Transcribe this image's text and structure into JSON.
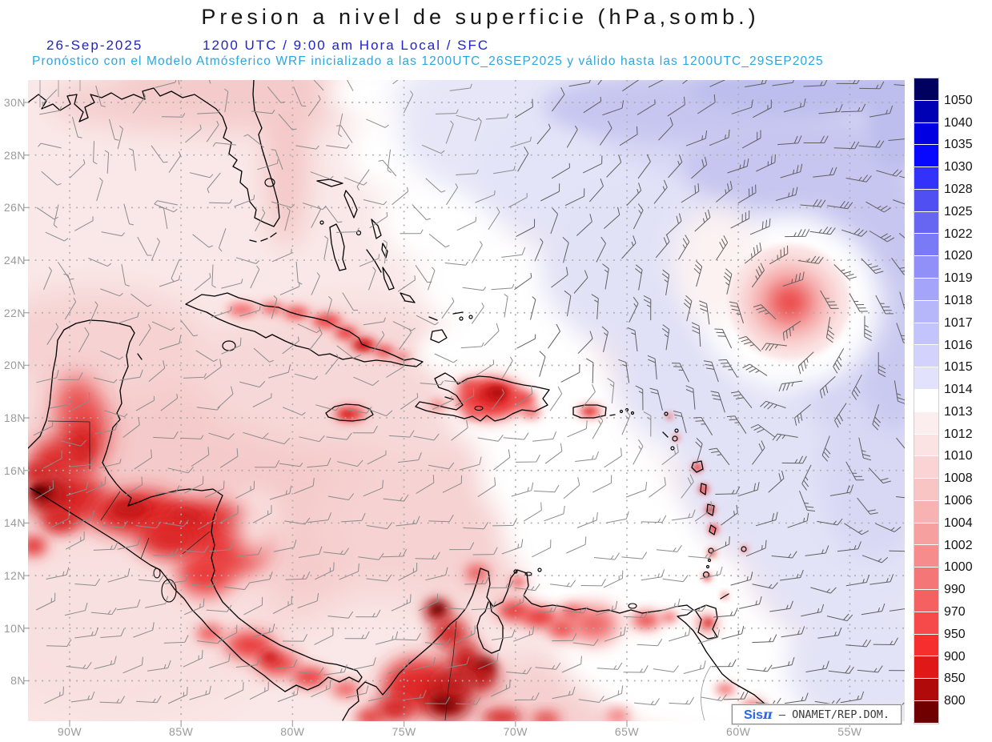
{
  "header": {
    "title": "Presion a nivel de superficie (hPa,somb.)",
    "date": "26-Sep-2025",
    "time_line": "1200 UTC / 9:00 am Hora Local / SFC",
    "forecast_line": "Pronóstico con el Modelo Atmósferico WRF inicializado a las 1200UTC_26SEP2025 y válido hasta las  1200UTC_29SEP2025",
    "title_color": "#161616",
    "date_color": "#2222CC",
    "forecast_color": "#2BA6DF"
  },
  "watermark": {
    "prefix": "Sis",
    "pi": "π",
    "separator": " – ",
    "suffix": "ONAMET/REP.DOM.",
    "prefix_color": "#2B66E8",
    "text_color": "#3A3A3A"
  },
  "axes": {
    "label_color": "#9A9A9A",
    "lat_labels": [
      {
        "label": "30N",
        "lat": 30
      },
      {
        "label": "28N",
        "lat": 28
      },
      {
        "label": "26N",
        "lat": 26
      },
      {
        "label": "24N",
        "lat": 24
      },
      {
        "label": "22N",
        "lat": 22
      },
      {
        "label": "20N",
        "lat": 20
      },
      {
        "label": "18N",
        "lat": 18
      },
      {
        "label": "16N",
        "lat": 16
      },
      {
        "label": "14N",
        "lat": 14
      },
      {
        "label": "12N",
        "lat": 12
      },
      {
        "label": "10N",
        "lat": 10
      },
      {
        "label": "8N",
        "lat": 8
      }
    ],
    "lon_labels": [
      {
        "label": "90W",
        "lon_w": 90
      },
      {
        "label": "85W",
        "lon_w": 85
      },
      {
        "label": "80W",
        "lon_w": 80
      },
      {
        "label": "75W",
        "lon_w": 75
      },
      {
        "label": "70W",
        "lon_w": 70
      },
      {
        "label": "65W",
        "lon_w": 65
      },
      {
        "label": "60W",
        "lon_w": 60
      },
      {
        "label": "55W",
        "lon_w": 55
      }
    ]
  },
  "chart_data": {
    "type": "heatmap",
    "title": "Presion a nivel de superficie (hPa,somb.)",
    "variable": "surface pressure",
    "units": "hPa",
    "model": "WRF",
    "init_time": "1200UTC_26SEP2025",
    "valid_time": "1200UTC_29SEP2025",
    "region": "Gulf of Mexico / Caribbean / western Atlantic",
    "lat_range_n": [
      6.6,
      30.9
    ],
    "lon_range_w": [
      91.9,
      52.5
    ],
    "grid": {
      "lat_step_deg": 2,
      "lon_step_deg": 5,
      "style": "dotted",
      "color": "#ABABAB"
    },
    "colorbar": {
      "labels": [
        1050,
        1040,
        1035,
        1030,
        1028,
        1025,
        1022,
        1020,
        1019,
        1018,
        1017,
        1016,
        1015,
        1014,
        1013,
        1012,
        1010,
        1008,
        1006,
        1004,
        1002,
        1000,
        990,
        970,
        950,
        900,
        850,
        800
      ],
      "colors": [
        "#00005F",
        "#0000B4",
        "#0000E1",
        "#0808FF",
        "#3232FA",
        "#5050F2",
        "#6666F2",
        "#7A7AF6",
        "#9090F8",
        "#A4A4FA",
        "#B6B6FB",
        "#C4C4FC",
        "#D2D2FC",
        "#E2E2FD",
        "#FFFFFF",
        "#FCEEEE",
        "#FBE3E3",
        "#FAD4D4",
        "#F9C4C4",
        "#F8B2B2",
        "#F7A0A0",
        "#F68C8C",
        "#F57676",
        "#F56060",
        "#F64A4A",
        "#F62E2E",
        "#E01818",
        "#B00A0A",
        "#700000"
      ],
      "label_color": "#141414"
    },
    "features": [
      {
        "kind": "tropical_cyclone",
        "lat_n": 22.4,
        "lon_w": 57.7,
        "description": "closed cyclonic circulation east of the Antilles"
      },
      {
        "kind": "high_pressure_area",
        "region": "northeast quadrant (subtropical Atlantic)",
        "shaded_range_hpa": "1014-1020"
      },
      {
        "kind": "terrain_low_shading",
        "region": "Guatemala highlands",
        "lat_n": 15.2,
        "lon_w": 91.1
      },
      {
        "kind": "terrain_low_shading",
        "region": "Sierra Nevada de Santa Marta, Colombia",
        "lat_n": 10.7,
        "lon_w": 73.5
      },
      {
        "kind": "terrain_low_shading",
        "region": "Andes, Colombia-Venezuela border",
        "lat_n": 8.5,
        "lon_w": 71.4
      },
      {
        "kind": "terrain_low_shading",
        "region": "Hispaniola interior",
        "lat_n": 18.8,
        "lon_w": 71.0
      },
      {
        "kind": "trade_winds",
        "region": "southern Caribbean",
        "direction": "easterly"
      }
    ],
    "wind": {
      "style": "wind barbs",
      "spacing_px": 37,
      "color_light": "#8C8C8C",
      "color_dark": "#606060"
    }
  },
  "render": {
    "base": "#FAE8E8",
    "hurricane_rings": [
      [
        72,
        "#FBE2E2"
      ],
      [
        58,
        "#F9D2D2"
      ],
      [
        47,
        "#F7BEBE"
      ],
      [
        38,
        "#F5AAAA"
      ],
      [
        30,
        "#F29292"
      ],
      [
        23,
        "#F07A7A"
      ],
      [
        16,
        "#EE6464"
      ],
      [
        9,
        "#EC5252"
      ]
    ],
    "blobs": [
      [
        240,
        620,
        260,
        180,
        "#F5CACA",
        28
      ],
      [
        120,
        430,
        140,
        70,
        "#F6D2D2",
        22
      ],
      [
        260,
        128,
        200,
        40,
        "#F5CFCF",
        16
      ],
      [
        358,
        195,
        28,
        115,
        "#F4C8C8",
        14
      ],
      [
        300,
        112,
        150,
        25,
        "#F4CACA",
        12
      ],
      [
        430,
        470,
        190,
        90,
        "#F7D8D8",
        22
      ],
      [
        600,
        650,
        210,
        110,
        "#F6D2D2",
        24
      ],
      [
        150,
        780,
        200,
        130,
        "#F9E0E0",
        26
      ],
      [
        700,
        880,
        180,
        60,
        "#F6D0D0",
        20
      ],
      [
        470,
        115,
        62,
        40,
        "#FFFFFF",
        16
      ],
      [
        505,
        190,
        72,
        52,
        "#FFFFFF",
        16
      ],
      [
        560,
        272,
        85,
        62,
        "#FFFFFF",
        16
      ],
      [
        615,
        352,
        92,
        66,
        "#FFFFFF",
        16
      ],
      [
        648,
        432,
        96,
        72,
        "#FFFFFF",
        16
      ],
      [
        678,
        512,
        106,
        76,
        "#FFFFFF",
        16
      ],
      [
        714,
        592,
        116,
        80,
        "#FFFFFF",
        16
      ],
      [
        754,
        668,
        126,
        84,
        "#FFFFFF",
        16
      ],
      [
        800,
        742,
        140,
        84,
        "#FFFFFF",
        16
      ],
      [
        850,
        815,
        150,
        80,
        "#FFFFFF",
        16
      ],
      [
        912,
        868,
        150,
        55,
        "#FFFFFF",
        16
      ],
      [
        860,
        520,
        75,
        55,
        "#FFFFFF",
        14
      ],
      [
        560,
        440,
        40,
        28,
        "#FFFFFF",
        12
      ],
      [
        600,
        118,
        115,
        32,
        "#E9E9F9",
        14
      ],
      [
        648,
        165,
        150,
        85,
        "#E6E6F8",
        16
      ],
      [
        750,
        215,
        160,
        100,
        "#E4E4F8",
        16
      ],
      [
        825,
        330,
        150,
        115,
        "#E2E2F7",
        16
      ],
      [
        908,
        458,
        140,
        120,
        "#E0E0F6",
        16
      ],
      [
        985,
        592,
        135,
        115,
        "#E2E2F7",
        16
      ],
      [
        1052,
        702,
        115,
        95,
        "#E3E3F7",
        16
      ],
      [
        1078,
        832,
        95,
        85,
        "#E3E3F7",
        16
      ],
      [
        770,
        128,
        95,
        30,
        "#D5D5F4",
        12
      ],
      [
        930,
        155,
        190,
        70,
        "#D5D5F4",
        14
      ],
      [
        1012,
        262,
        140,
        90,
        "#D2D2F3",
        14
      ],
      [
        1072,
        422,
        90,
        120,
        "#D2D2F3",
        14
      ],
      [
        1092,
        592,
        70,
        110,
        "#D8D8F5",
        14
      ],
      [
        868,
        136,
        185,
        40,
        "#C6C6F0",
        12
      ],
      [
        992,
        206,
        140,
        56,
        "#C6C6F0",
        12
      ],
      [
        1086,
        302,
        66,
        96,
        "#C6C6F0",
        12
      ],
      [
        1116,
        442,
        46,
        96,
        "#CACAF1",
        12
      ],
      [
        1030,
        114,
        170,
        26,
        "#BDBDEE",
        9
      ],
      [
        1122,
        152,
        40,
        62,
        "#BDBDEE",
        9
      ],
      [
        986,
        378,
        115,
        108,
        "#FFFFFF",
        14
      ],
      [
        895,
        330,
        55,
        75,
        "#FCF2F2",
        14
      ],
      [
        302,
        387,
        18,
        8,
        "#F56A6A",
        6
      ],
      [
        340,
        385,
        14,
        7,
        "#F25858",
        6
      ],
      [
        370,
        391,
        16,
        8,
        "#EF4848",
        6
      ],
      [
        408,
        401,
        18,
        9,
        "#EC3C3C",
        6
      ],
      [
        432,
        416,
        14,
        8,
        "#E83232",
        6
      ],
      [
        454,
        431,
        16,
        9,
        "#DC2424",
        6
      ],
      [
        454,
        431,
        7,
        4,
        "#C61616",
        4
      ],
      [
        480,
        439,
        12,
        7,
        "#EA3A3A",
        6
      ],
      [
        502,
        446,
        9,
        5,
        "#EE5252",
        5
      ],
      [
        612,
        498,
        60,
        40,
        "#FDF6F6",
        14
      ],
      [
        612,
        498,
        42,
        26,
        "#EE4242",
        8
      ],
      [
        616,
        493,
        22,
        13,
        "#D31E1E",
        6
      ],
      [
        621,
        491,
        10,
        7,
        "#B41010",
        4
      ],
      [
        586,
        483,
        12,
        8,
        "#EA4A4A",
        5
      ],
      [
        653,
        499,
        16,
        10,
        "#EC4646",
        6
      ],
      [
        663,
        515,
        12,
        7,
        "#F05A5A",
        5
      ],
      [
        591,
        515,
        10,
        6,
        "#EE5757",
        5
      ],
      [
        547,
        506,
        10,
        6,
        "#F47272",
        5
      ],
      [
        437,
        517,
        20,
        9,
        "#EC4242",
        6
      ],
      [
        434,
        518,
        8,
        4,
        "#D62222",
        4
      ],
      [
        737,
        514,
        15,
        7,
        "#EE4A4A",
        5
      ],
      [
        736,
        514,
        6,
        3,
        "#DC2A2A",
        4
      ],
      [
        871,
        584,
        6,
        6,
        "#EA3E3E",
        4
      ],
      [
        879,
        611,
        6,
        6,
        "#EA3E3E",
        4
      ],
      [
        887,
        637,
        6,
        6,
        "#EA3E3E",
        4
      ],
      [
        891,
        661,
        6,
        6,
        "#EA3E3E",
        4
      ],
      [
        889,
        691,
        5,
        5,
        "#EA3E3E",
        4
      ],
      [
        883,
        721,
        5,
        5,
        "#EA3E3E",
        4
      ],
      [
        845,
        547,
        4,
        4,
        "#F26262",
        3
      ],
      [
        836,
        520,
        4,
        4,
        "#F26262",
        3
      ],
      [
        930,
        686,
        4,
        4,
        "#F26262",
        3
      ],
      [
        905,
        744,
        4,
        4,
        "#F26262",
        3
      ],
      [
        105,
        540,
        28,
        45,
        "#E23030",
        14
      ],
      [
        100,
        560,
        18,
        25,
        "#D01C1C",
        10
      ],
      [
        95,
        500,
        20,
        30,
        "#EA4444",
        14
      ],
      [
        70,
        575,
        30,
        25,
        "#DD2A2A",
        12
      ],
      [
        90,
        622,
        42,
        32,
        "#DD2C2C",
        12
      ],
      [
        60,
        618,
        26,
        22,
        "#B81212",
        9
      ],
      [
        52,
        614,
        12,
        10,
        "#700404",
        6
      ],
      [
        48,
        612,
        6,
        5,
        "#4A0000",
        4
      ],
      [
        75,
        650,
        22,
        16,
        "#D82626",
        8
      ],
      [
        42,
        682,
        16,
        12,
        "#E23232",
        8
      ],
      [
        46,
        590,
        18,
        12,
        "#D02222",
        8
      ],
      [
        172,
        641,
        60,
        28,
        "#E02727",
        13
      ],
      [
        252,
        656,
        55,
        30,
        "#E02727",
        13
      ],
      [
        162,
        636,
        25,
        12,
        "#C01414",
        8
      ],
      [
        232,
        646,
        20,
        10,
        "#CC1A1A",
        8
      ],
      [
        292,
        682,
        45,
        35,
        "#E53232",
        13
      ],
      [
        257,
        716,
        35,
        28,
        "#EA3A3A",
        12
      ],
      [
        302,
        651,
        25,
        15,
        "#D92424",
        8
      ],
      [
        212,
        672,
        40,
        25,
        "#DD2828",
        12
      ],
      [
        320,
        655,
        28,
        42,
        "#FAE6E6",
        15
      ],
      [
        312,
        806,
        30,
        16,
        "#E83232",
        10
      ],
      [
        347,
        829,
        26,
        14,
        "#E62E2E",
        10
      ],
      [
        387,
        846,
        22,
        12,
        "#EA3838",
        8
      ],
      [
        337,
        821,
        12,
        7,
        "#CC1616",
        6
      ],
      [
        262,
        791,
        16,
        10,
        "#EE4848",
        8
      ],
      [
        432,
        861,
        18,
        9,
        "#EE4E4E",
        8
      ],
      [
        522,
        856,
        45,
        34,
        "#E02A2A",
        13
      ],
      [
        559,
        879,
        28,
        20,
        "#A80A0A",
        9
      ],
      [
        557,
        877,
        14,
        10,
        "#5C0000",
        6
      ],
      [
        492,
        886,
        25,
        15,
        "#D01E1E",
        9
      ],
      [
        462,
        896,
        18,
        10,
        "#E33232",
        8
      ],
      [
        546,
        763,
        16,
        14,
        "#B81010",
        8
      ],
      [
        547,
        761,
        8,
        7,
        "#4E0000",
        5
      ],
      [
        562,
        791,
        22,
        20,
        "#D32222",
        10
      ],
      [
        582,
        826,
        20,
        25,
        "#C81A1A",
        10
      ],
      [
        605,
        834,
        14,
        12,
        "#700404",
        6
      ],
      [
        602,
        846,
        20,
        18,
        "#C01616",
        9
      ],
      [
        567,
        856,
        25,
        22,
        "#BE1414",
        11
      ],
      [
        596,
        716,
        14,
        10,
        "#EA4444",
        7
      ],
      [
        642,
        763,
        20,
        12,
        "#E63030",
        8
      ],
      [
        674,
        771,
        22,
        13,
        "#E83434",
        8
      ],
      [
        702,
        786,
        18,
        12,
        "#EC4444",
        8
      ],
      [
        647,
        727,
        10,
        7,
        "#F05A5A",
        6
      ],
      [
        714,
        765,
        16,
        9,
        "#EA3E3E",
        7
      ],
      [
        742,
        780,
        30,
        22,
        "#EE6060",
        12
      ],
      [
        807,
        775,
        18,
        10,
        "#E83838",
        8
      ],
      [
        836,
        771,
        10,
        6,
        "#EE5252",
        6
      ],
      [
        883,
        779,
        12,
        9,
        "#EA3E3E",
        7
      ],
      [
        885,
        778,
        5,
        4,
        "#D42222",
        4
      ],
      [
        627,
        896,
        25,
        10,
        "#D62424",
        8
      ],
      [
        682,
        898,
        18,
        8,
        "#E03232",
        8
      ],
      [
        772,
        894,
        14,
        7,
        "#EE5757",
        7
      ],
      [
        906,
        861,
        12,
        7,
        "#F06A6A",
        6
      ],
      [
        941,
        886,
        14,
        10,
        "#E84242",
        8
      ],
      [
        952,
        897,
        10,
        6,
        "#E23636",
        6
      ]
    ]
  }
}
